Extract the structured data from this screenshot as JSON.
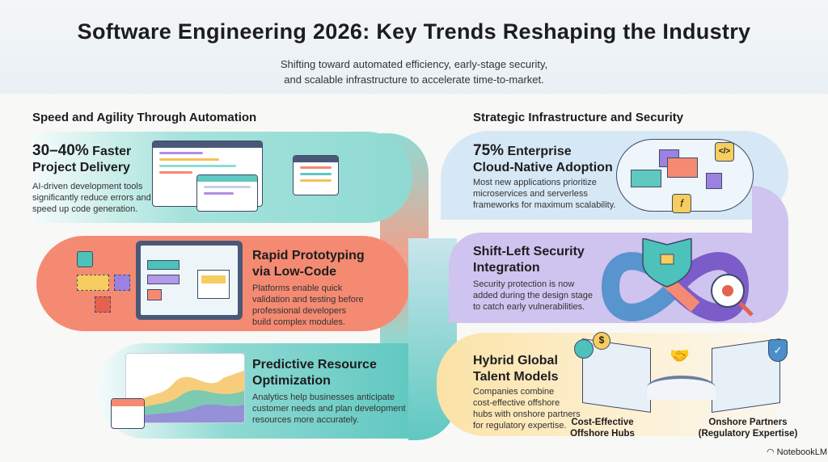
{
  "header": {
    "title": "Software Engineering 2026: Key Trends Reshaping the Industry",
    "subtitle": [
      "Shifting toward automated efficiency, early-stage security,",
      "and scalable infrastructure to accelerate time-to-market."
    ]
  },
  "left": {
    "heading": "Speed and Agility Through Automation",
    "cards": [
      {
        "title_strong": "30–40%",
        "title_rest": " Faster",
        "title_line2": "Project Delivery",
        "desc": [
          "AI-driven development tools",
          "significantly reduce errors and",
          "speed up code generation."
        ]
      },
      {
        "title_line1": "Rapid Prototyping",
        "title_line2": "via Low-Code",
        "desc": [
          "Platforms enable quick",
          "validation and testing before",
          "professional developers",
          "build complex modules."
        ]
      },
      {
        "title_line1": "Predictive Resource",
        "title_line2": "Optimization",
        "desc": [
          "Analytics help businesses anticipate",
          "customer needs and plan development",
          "resources more accurately."
        ]
      }
    ]
  },
  "right": {
    "heading": "Strategic Infrastructure and Security",
    "cards": [
      {
        "title_strong": "75%",
        "title_rest": " Enterprise",
        "title_line2": "Cloud-Native Adoption",
        "desc": [
          "Most new applications prioritize",
          "microservices and serverless",
          "frameworks for maximum scalability."
        ]
      },
      {
        "title_line1": "Shift-Left Security",
        "title_line2": "Integration",
        "desc": [
          "Security protection is now",
          "added during the design stage",
          "to catch early vulnerabilities."
        ]
      },
      {
        "title_line1": "Hybrid Global",
        "title_line2": "Talent Models",
        "desc": [
          "Companies combine",
          "cost-effective offshore",
          "hubs with onshore partners",
          "for regulatory expertise."
        ],
        "labels": [
          [
            "Cost-Effective",
            "Offshore Hubs"
          ],
          [
            "Onshore Partners",
            "(Regulatory Expertise)"
          ]
        ]
      }
    ]
  },
  "footer": {
    "brand": "NotebookLM"
  },
  "colors": {
    "teal": "#8fdad3",
    "coral": "#f58a72",
    "blue": "#d6e8f5",
    "purple": "#cfc3ef",
    "yellow": "#fbe2a6"
  }
}
